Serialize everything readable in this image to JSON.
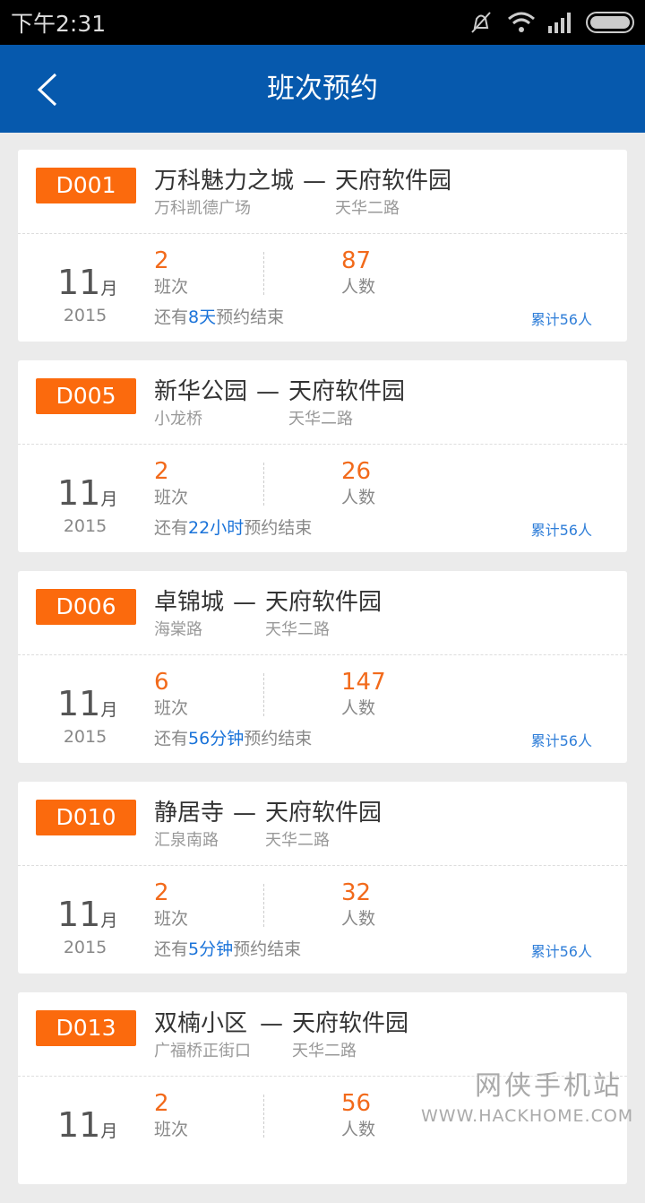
{
  "status_bar": {
    "time": "下午2:31",
    "icons": [
      "mute-icon",
      "wifi-icon",
      "signal-icon",
      "battery-icon"
    ]
  },
  "header": {
    "title": "班次预约",
    "back_icon": "chevron-left-icon"
  },
  "colors": {
    "header": "#0659ad",
    "badge": "#fb6a0d",
    "number": "#f26a1b",
    "highlight": "#1a73d9"
  },
  "routes": [
    {
      "code": "D001",
      "from": "万科魅力之城",
      "from_station": "万科凯德广场",
      "separator": "—",
      "to": "天府软件园",
      "to_station": "天华二路",
      "month": "11",
      "month_unit": "月",
      "year": "2015",
      "trips": "2",
      "trips_label": "班次",
      "people": "87",
      "people_label": "人数",
      "remain_prefix": "还有",
      "remain_value": "8天",
      "remain_suffix": "预约结束",
      "total": "累计56人"
    },
    {
      "code": "D005",
      "from": "新华公园",
      "from_station": "小龙桥",
      "separator": "—",
      "to": "天府软件园",
      "to_station": "天华二路",
      "month": "11",
      "month_unit": "月",
      "year": "2015",
      "trips": "2",
      "trips_label": "班次",
      "people": "26",
      "people_label": "人数",
      "remain_prefix": "还有",
      "remain_value": "22小时",
      "remain_suffix": "预约结束",
      "total": "累计56人"
    },
    {
      "code": "D006",
      "from": "卓锦城",
      "from_station": "海棠路",
      "separator": "—",
      "to": "天府软件园",
      "to_station": "天华二路",
      "month": "11",
      "month_unit": "月",
      "year": "2015",
      "trips": "6",
      "trips_label": "班次",
      "people": "147",
      "people_label": "人数",
      "remain_prefix": "还有",
      "remain_value": "56分钟",
      "remain_suffix": "预约结束",
      "total": "累计56人"
    },
    {
      "code": "D010",
      "from": "静居寺",
      "from_station": "汇泉南路",
      "separator": "—",
      "to": "天府软件园",
      "to_station": "天华二路",
      "month": "11",
      "month_unit": "月",
      "year": "2015",
      "trips": "2",
      "trips_label": "班次",
      "people": "32",
      "people_label": "人数",
      "remain_prefix": "还有",
      "remain_value": "5分钟",
      "remain_suffix": "预约结束",
      "total": "累计56人"
    },
    {
      "code": "D013",
      "from": "双楠小区",
      "from_station": "广福桥正街口",
      "separator": "—",
      "to": "天府软件园",
      "to_station": "天华二路",
      "month": "11",
      "month_unit": "月",
      "year": "",
      "trips": "2",
      "trips_label": "班次",
      "people": "56",
      "people_label": "人数",
      "remain_prefix": "",
      "remain_value": "",
      "remain_suffix": "",
      "total": ""
    }
  ],
  "watermark": {
    "cn": "网侠手机站",
    "en": "WWW.HACKHOME.COM"
  }
}
